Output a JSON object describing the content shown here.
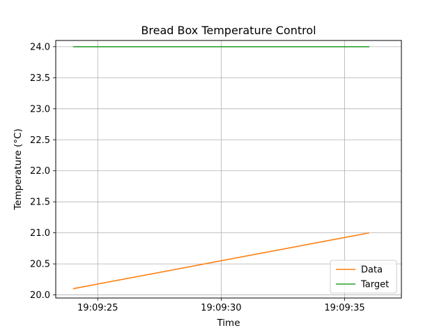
{
  "chart_data": {
    "type": "line",
    "title": "Bread Box Temperature Control",
    "xlabel": "Time",
    "ylabel": "Temperature (°C)",
    "x_ticks": [
      "19:09:25",
      "19:09:30",
      "19:09:35"
    ],
    "x_tick_seconds": [
      25,
      30,
      35
    ],
    "xlim_seconds": [
      23.3,
      37.3
    ],
    "y_ticks": [
      "20.0",
      "20.5",
      "21.0",
      "21.5",
      "22.0",
      "22.5",
      "23.0",
      "23.5",
      "24.0"
    ],
    "ylim": [
      19.95,
      24.1
    ],
    "grid": true,
    "legend_position": "lower-right",
    "series": [
      {
        "name": "Data",
        "color": "#ff7f0e",
        "x_seconds": [
          24,
          36
        ],
        "values": [
          20.1,
          21.0
        ]
      },
      {
        "name": "Target",
        "color": "#2ca02c",
        "x_seconds": [
          24,
          36
        ],
        "values": [
          24.0,
          24.0
        ]
      }
    ]
  }
}
